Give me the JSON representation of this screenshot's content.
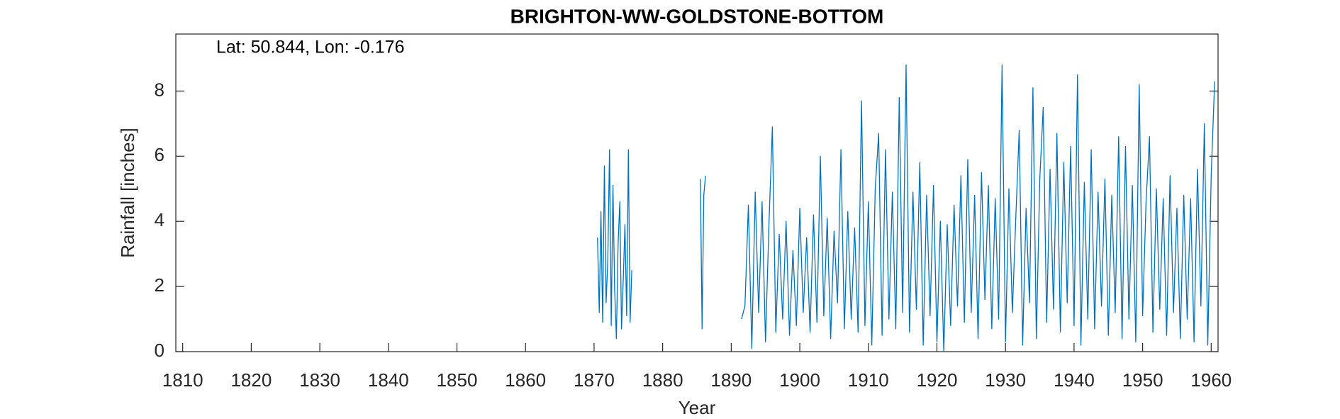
{
  "chart_data": {
    "type": "line",
    "title": "BRIGHTON-WW-GOLDSTONE-BOTTOM",
    "annotation": "Lat: 50.844, Lon: -0.176",
    "xlabel": "Year",
    "ylabel": "Rainfall [inches]",
    "xlim": [
      1809,
      1961
    ],
    "ylim": [
      0,
      9.75
    ],
    "xticks": [
      1810,
      1820,
      1830,
      1840,
      1850,
      1860,
      1870,
      1880,
      1890,
      1900,
      1910,
      1920,
      1930,
      1940,
      1950,
      1960
    ],
    "yticks": [
      0,
      2,
      4,
      6,
      8
    ],
    "x": [
      1870.5,
      1870.75,
      1871,
      1871.25,
      1871.5,
      1871.75,
      1872,
      1872.25,
      1872.5,
      1872.75,
      1873,
      1873.25,
      1873.5,
      1873.75,
      1874,
      1874.25,
      1874.5,
      1874.75,
      1875,
      1875.25,
      1875.5,
      1878,
      1885.5,
      1885.75,
      1886,
      1886.25,
      1889,
      1891.5,
      1892,
      1892.5,
      1893,
      1893.5,
      1894,
      1894.5,
      1895,
      1895.5,
      1896,
      1896.5,
      1897,
      1897.5,
      1898,
      1898.5,
      1899,
      1899.5,
      1900,
      1900.5,
      1901,
      1901.5,
      1902,
      1902.5,
      1903,
      1903.5,
      1904,
      1904.5,
      1905,
      1905.5,
      1906,
      1906.5,
      1907,
      1907.5,
      1908,
      1908.5,
      1909,
      1909.5,
      1910,
      1910.5,
      1911,
      1911.5,
      1912,
      1912.5,
      1913,
      1913.5,
      1914,
      1914.5,
      1915,
      1915.5,
      1916,
      1916.5,
      1917,
      1917.5,
      1918,
      1918.5,
      1919,
      1919.5,
      1920,
      1920.5,
      1921,
      1921.5,
      1922,
      1922.5,
      1923,
      1923.5,
      1924,
      1924.5,
      1925,
      1925.5,
      1926,
      1926.5,
      1927,
      1927.5,
      1928,
      1928.5,
      1929,
      1929.5,
      1930,
      1930.5,
      1931,
      1931.5,
      1932,
      1932.5,
      1933,
      1933.5,
      1934,
      1934.5,
      1935,
      1935.5,
      1936,
      1936.5,
      1937,
      1937.5,
      1938,
      1938.5,
      1939,
      1939.5,
      1940,
      1940.5,
      1941,
      1941.5,
      1942,
      1942.5,
      1943,
      1943.5,
      1944,
      1944.5,
      1945,
      1945.5,
      1946,
      1946.5,
      1947,
      1947.5,
      1948,
      1948.5,
      1949,
      1949.5,
      1950,
      1950.5,
      1951,
      1951.5,
      1952,
      1952.5,
      1953,
      1953.5,
      1954,
      1954.5,
      1955,
      1955.5,
      1956,
      1956.5,
      1957,
      1957.5,
      1958,
      1958.5,
      1959,
      1959.5,
      1960,
      1960.5
    ],
    "series": [
      {
        "color": "#0072BD",
        "values": [
          3.5,
          1.2,
          4.3,
          0.9,
          5.7,
          1.5,
          2.8,
          6.2,
          0.8,
          5.1,
          1.9,
          0.4,
          3.3,
          4.6,
          0.7,
          2.2,
          3.9,
          1.1,
          6.2,
          0.9,
          2.5,
          null,
          5.3,
          0.7,
          4.8,
          5.4,
          null,
          1.0,
          1.4,
          4.5,
          0.1,
          4.9,
          1.2,
          4.6,
          0.3,
          3.9,
          6.9,
          0.6,
          3.6,
          1.0,
          4.0,
          0.5,
          3.1,
          0.8,
          4.4,
          1.2,
          3.5,
          0.6,
          4.2,
          0.9,
          6.0,
          1.1,
          4.1,
          0.4,
          3.7,
          1.5,
          6.2,
          0.7,
          4.3,
          1.0,
          3.8,
          0.6,
          7.7,
          0.8,
          4.6,
          0.2,
          5.0,
          6.7,
          0.5,
          6.2,
          1.0,
          4.9,
          0.7,
          7.8,
          1.2,
          8.8,
          0.6,
          4.9,
          1.3,
          5.8,
          0.2,
          4.8,
          1.1,
          5.1,
          0.3,
          4.0,
          0.0,
          3.9,
          0.8,
          4.5,
          1.4,
          5.4,
          0.9,
          5.9,
          1.2,
          4.8,
          0.4,
          5.5,
          1.6,
          5.1,
          0.7,
          4.7,
          1.0,
          8.8,
          0.3,
          5.0,
          1.2,
          4.1,
          6.8,
          0.2,
          4.4,
          1.5,
          8.1,
          0.4,
          5.3,
          7.5,
          0.9,
          5.6,
          1.3,
          6.7,
          0.6,
          5.8,
          1.5,
          6.3,
          0.8,
          8.5,
          0.2,
          5.2,
          1.0,
          6.2,
          0.7,
          4.9,
          1.4,
          5.3,
          0.5,
          4.8,
          1.2,
          6.6,
          0.4,
          6.3,
          1.0,
          5.1,
          0.3,
          8.2,
          1.1,
          4.6,
          6.6,
          0.6,
          5.0,
          1.3,
          4.7,
          0.5,
          5.4,
          1.2,
          4.4,
          0.4,
          4.8,
          1.0,
          4.7,
          0.3,
          5.6,
          1.4,
          7.0,
          0.2,
          5.4,
          8.3
        ]
      }
    ]
  }
}
